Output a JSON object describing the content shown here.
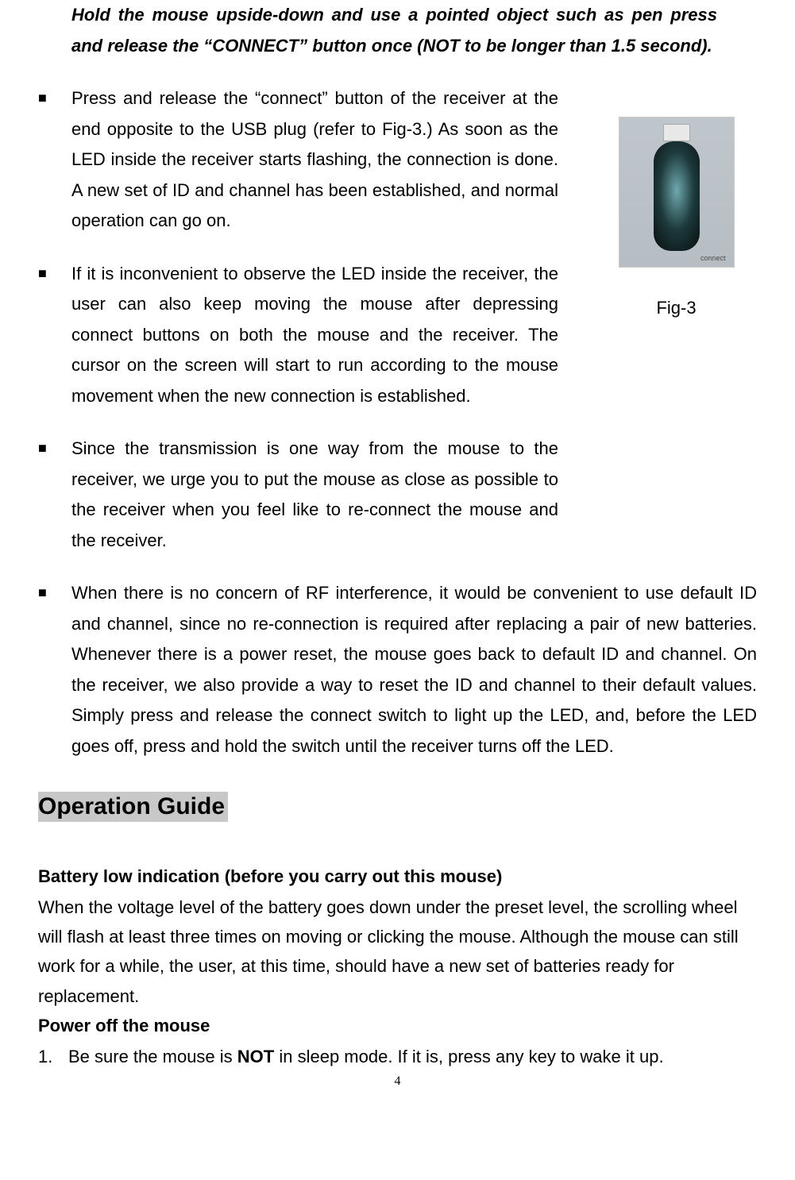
{
  "intro": "Hold the mouse upside-down and use a pointed object such as pen press and release the “CONNECT” button once (NOT to be longer than 1.5 second).",
  "bullet_marker": "■",
  "bullets": [
    "Press and release the “connect” button of the receiver at the end opposite to the USB plug (refer to Fig-3.) As soon as the LED inside the receiver starts flashing, the connection is done. A new set of ID and channel has been established, and normal operation can go on.",
    "If it is inconvenient to observe the LED inside the receiver, the user can also keep moving the mouse after depressing connect buttons on both the mouse and the receiver. The cursor on the screen will start to run according to the mouse movement when the new connection is established.",
    "Since the transmission is one way from the mouse to the receiver, we urge you to put the mouse as close as possible to the receiver when you feel like to re-connect the mouse and the receiver.",
    "When there is no concern of RF interference, it would be convenient to use default ID and channel, since no re-connection is required after replacing a pair of new batteries. Whenever there is a power reset, the mouse goes back to default ID and channel. On the receiver, we also provide a way to reset the ID and channel to their default values. Simply press and release the connect switch to light up the LED, and, before the LED goes off, press and hold the switch until the receiver turns off the LED."
  ],
  "figure": {
    "label_inside": "connect",
    "caption": "Fig-3"
  },
  "section_heading": "Operation Guide",
  "battery": {
    "heading": "Battery low indication (before you carry out this mouse)",
    "text": "When the voltage level of the battery goes down under the preset level, the scrolling wheel will flash at least three times on moving or clicking the mouse. Although the mouse can still work for a while, the user, at this time, should have a new set of batteries ready for replacement."
  },
  "poweroff": {
    "heading": "Power off the mouse",
    "item_num": "1.",
    "item_prefix": "Be sure the mouse is ",
    "item_bold": "NOT",
    "item_suffix": " in sleep mode. If it is, press any key to wake it up."
  },
  "page_number": "4"
}
